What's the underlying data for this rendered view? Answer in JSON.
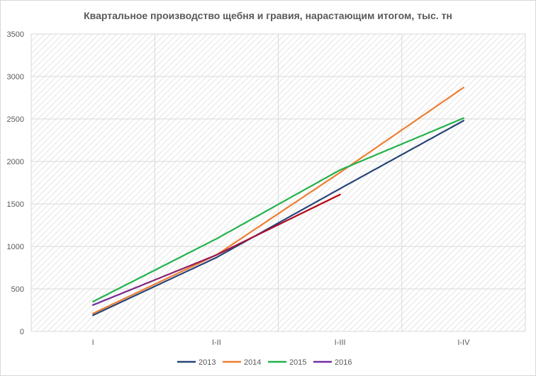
{
  "chart_data": {
    "type": "line",
    "title": "Квартальное производство щебня и гравия, нарастающим итогом, тыс. тн",
    "xlabel": "",
    "ylabel": "",
    "categories": [
      "I",
      "I-II",
      "I-III",
      "I-IV"
    ],
    "ylim": [
      0,
      3500
    ],
    "yticks": [
      0,
      500,
      1000,
      1500,
      2000,
      2500,
      3000,
      3500
    ],
    "grid": true,
    "legend_position": "bottom",
    "series": [
      {
        "name": "2013",
        "color": "#264478",
        "values": [
          190,
          870,
          1680,
          2480
        ]
      },
      {
        "name": "2014",
        "color": "#ED7D31",
        "values": [
          210,
          900,
          1870,
          2870
        ]
      },
      {
        "name": "2015",
        "color": "#21B24B",
        "values": [
          350,
          1090,
          1900,
          2510
        ]
      },
      {
        "name": "2016",
        "color": "#7030A0",
        "accent_color": "#C00000",
        "values": [
          310,
          900,
          1610,
          null
        ]
      }
    ]
  }
}
